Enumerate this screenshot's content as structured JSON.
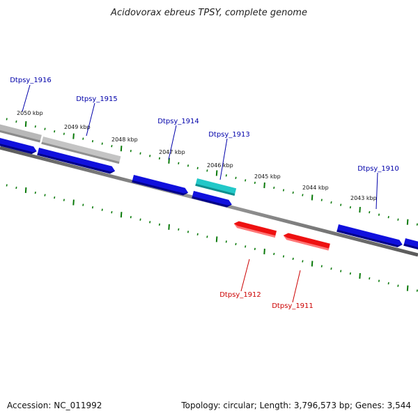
{
  "title": "Acidovorax ebreus TPSY, complete genome",
  "footer": {
    "accession": "Accession: NC_011992",
    "summary": "Topology: circular; Length: 3,796,573 bp; Genes: 3,544"
  },
  "ruler_labels": [
    "2050 kbp",
    "2049 kbp",
    "2048 kbp",
    "2047 kbp",
    "2046 kbp",
    "2045 kbp",
    "2044 kbp",
    "2043 kbp"
  ],
  "gene_labels": {
    "forward": [
      "Dtpsy_1916",
      "Dtpsy_1915",
      "Dtpsy_1914",
      "Dtpsy_1913",
      "Dtpsy_1910"
    ],
    "reverse": [
      "Dtpsy_1912",
      "Dtpsy_1911"
    ]
  },
  "colors": {
    "forward_gene": "#1010dd",
    "reverse_gene": "#ee1111",
    "highlight_gene": "#22c8c8",
    "pseudo_gene": "#b8b8b8",
    "backbone": "#808080",
    "ticks": "#0a7a0a",
    "forward_label": "#0000aa",
    "reverse_label": "#cc0000"
  }
}
